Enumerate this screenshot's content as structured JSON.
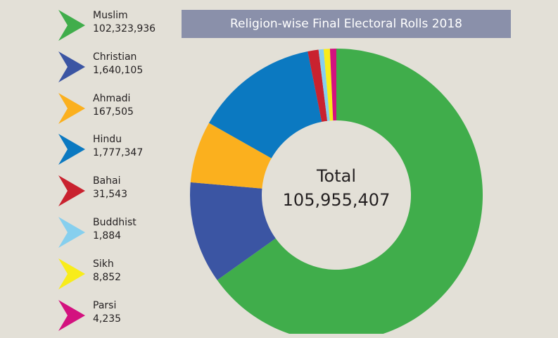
{
  "chart_data": {
    "type": "pie",
    "variant": "donut",
    "title": "Religion-wise Final Electoral Rolls 2018",
    "center_label": "Total",
    "total": "105,955,407",
    "legend_position": "left",
    "slices": [
      {
        "name": "Muslim",
        "value": 102323936,
        "label": "102,323,936",
        "color": "#40ad4b"
      },
      {
        "name": "Christian",
        "value": 1640105,
        "label": "1,640,105",
        "color": "#3b55a3"
      },
      {
        "name": "Ahmadi",
        "value": 167505,
        "label": "167,505",
        "color": "#fbb01e"
      },
      {
        "name": "Hindu",
        "value": 1777347,
        "label": "1,777,347",
        "color": "#0b79c1"
      },
      {
        "name": "Bahai",
        "value": 31543,
        "label": "31,543",
        "color": "#c9222f"
      },
      {
        "name": "Buddhist",
        "value": 1884,
        "label": "1,884",
        "color": "#86cfee"
      },
      {
        "name": "Sikh",
        "value": 8852,
        "label": "8,852",
        "color": "#f8ec1b"
      },
      {
        "name": "Parsi",
        "value": 4235,
        "label": "4,235",
        "color": "#d3127f"
      }
    ]
  }
}
